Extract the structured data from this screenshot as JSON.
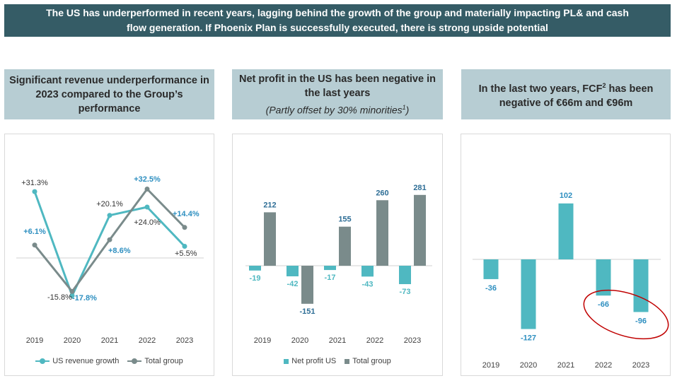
{
  "banner": {
    "line1": "The US has underperformed in recent years, lagging behind the growth of the group and materially impacting PL& and cash",
    "line2": "flow generation. If Phoenix Plan is successfully executed, there is strong upside potential"
  },
  "headers": {
    "h1": "Significant revenue underperformance in 2023 compared to the Group’s performance",
    "h2_main": "Net profit in the US has been negative in the last years",
    "h2_sub": "(Partly offset by 30% minorities",
    "h2_sub_sup": "1",
    "h2_sub_end": ")",
    "h3_pre": "In the last two years, FCF",
    "h3_sup": "2",
    "h3_post": " has been negative of €66m and €96m"
  },
  "colors": {
    "teal": "#4fb8c1",
    "grey": "#7a8b8b",
    "label_blue": "#2e8fc0",
    "ellipse": "#c00000"
  },
  "chart_data": [
    {
      "type": "line",
      "categories": [
        "2019",
        "2020",
        "2021",
        "2022",
        "2023"
      ],
      "series": [
        {
          "name": "US revenue growth",
          "values": [
            31.3,
            -17.8,
            20.1,
            24.0,
            5.5
          ],
          "labels": [
            "+31.3%",
            "-17.8%",
            "+20.1%",
            "+24.0%",
            "+5.5%"
          ]
        },
        {
          "name": "Total group",
          "values": [
            6.1,
            -15.8,
            8.6,
            32.5,
            14.4
          ],
          "labels": [
            "+6.1%",
            "-15.8%",
            "+8.6%",
            "+32.5%",
            "+14.4%"
          ]
        }
      ]
    },
    {
      "type": "bar",
      "categories": [
        "2019",
        "2020",
        "2021",
        "2022",
        "2023"
      ],
      "series": [
        {
          "name": "Net profit US",
          "values": [
            -19,
            -42,
            -17,
            -43,
            -73
          ]
        },
        {
          "name": "Total group",
          "values": [
            212,
            -151,
            155,
            260,
            281
          ]
        }
      ]
    },
    {
      "type": "bar",
      "categories": [
        "2019",
        "2020",
        "2021",
        "2022",
        "2023"
      ],
      "series": [
        {
          "values": [
            -36,
            -127,
            102,
            -66,
            -96
          ]
        }
      ]
    }
  ]
}
